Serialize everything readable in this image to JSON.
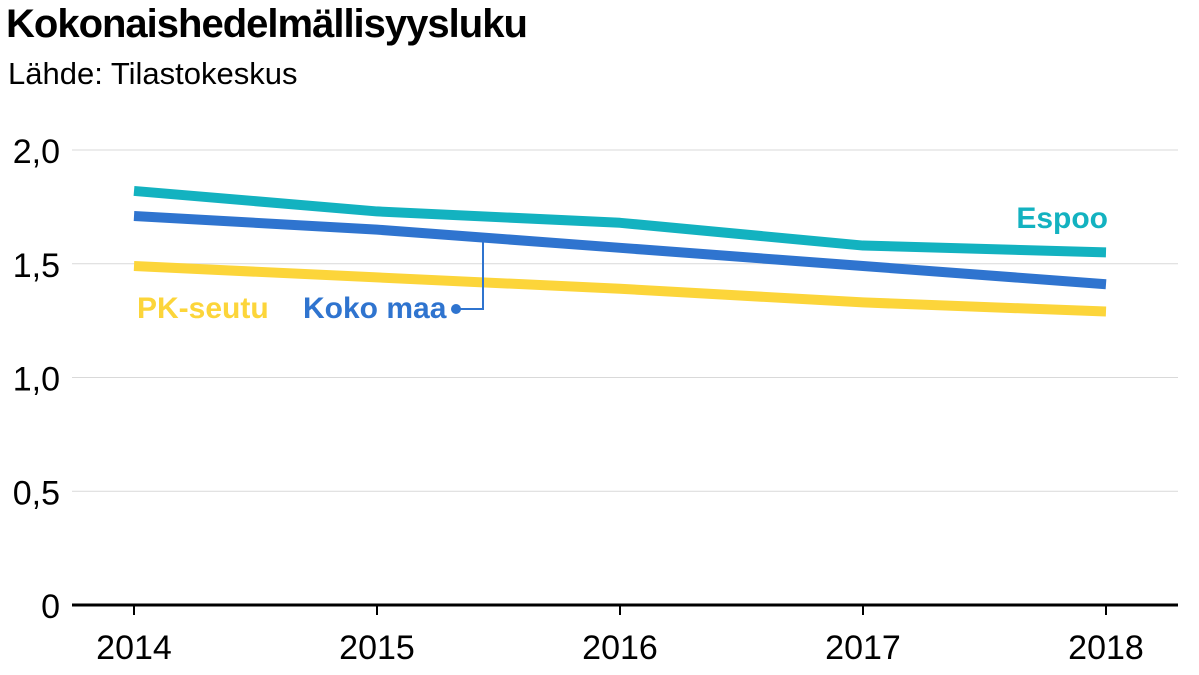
{
  "chart_data": {
    "type": "line",
    "title": "Kokonaishedelmällisyysluku",
    "subtitle": "Lähde: Tilastokeskus",
    "categories": [
      "2014",
      "2015",
      "2016",
      "2017",
      "2018"
    ],
    "ylim": [
      0,
      2.0
    ],
    "yticks": [
      {
        "value": 0,
        "label": "0"
      },
      {
        "value": 0.5,
        "label": "0,5"
      },
      {
        "value": 1.0,
        "label": "1,0"
      },
      {
        "value": 1.5,
        "label": "1,5"
      },
      {
        "value": 2.0,
        "label": "2,0"
      }
    ],
    "grid": true,
    "series": [
      {
        "name": "Espoo",
        "color": "#13b2c0",
        "values": [
          1.82,
          1.73,
          1.68,
          1.58,
          1.55
        ]
      },
      {
        "name": "Koko maa",
        "color": "#2f74cf",
        "values": [
          1.71,
          1.65,
          1.57,
          1.49,
          1.41
        ]
      },
      {
        "name": "PK-seutu",
        "color": "#fcd53a",
        "values": [
          1.49,
          1.44,
          1.39,
          1.33,
          1.29
        ]
      }
    ]
  }
}
